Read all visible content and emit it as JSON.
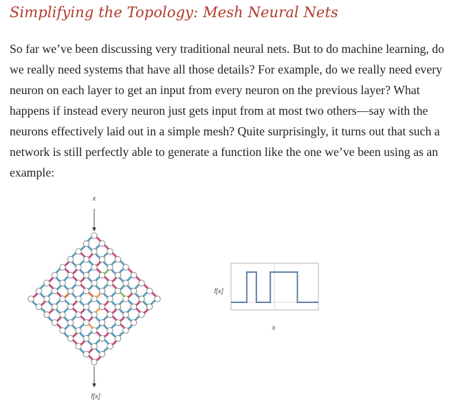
{
  "heading": "Simplifying the Topology: Mesh Neural Nets",
  "paragraph": "So far we’ve been discussing very traditional neural nets. But to do machine learning, do we really need systems that have all those details? For example, do we really need every neuron on each layer to get an input from every neuron on the previous layer? What happens if instead every neuron just gets input from at most two others—say with the neurons effectively laid out in a simple mesh? Quite surprisingly, it turns out that such a network is still perfectly able to generate a function like the one we’ve been using as an example:",
  "mesh_figure": {
    "input_label": "x",
    "output_label": "f[x]",
    "edge_colors": [
      "#c94a7c",
      "#5b9ec1",
      "#f0a35c",
      "#e8733c",
      "#8cbf5c"
    ]
  },
  "plot_figure": {
    "xlabel": "x",
    "ylabel": "f[x]",
    "line_color": "#5e7fa6"
  },
  "chart_data": {
    "type": "line",
    "title": "",
    "xlabel": "x",
    "ylabel": "f[x]",
    "x": [
      0,
      0.18,
      0.18,
      0.29,
      0.29,
      0.45,
      0.45,
      0.76,
      0.76,
      1.0
    ],
    "y": [
      0,
      0,
      1,
      1,
      0,
      0,
      1,
      1,
      0,
      0
    ],
    "grid": true
  }
}
